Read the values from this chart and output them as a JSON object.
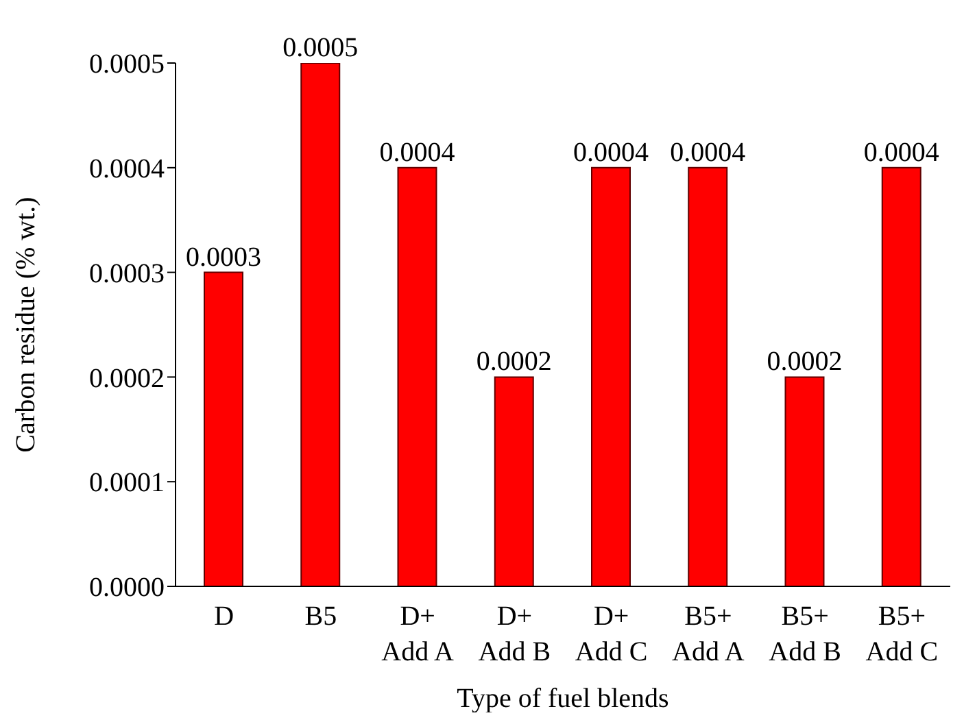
{
  "chart_data": {
    "type": "bar",
    "xlabel": "Type of fuel blends",
    "ylabel": "Carbon residue (% wt.)",
    "categories": [
      "D",
      "B5",
      "D+ Add A",
      "D+ Add B",
      "D+ Add C",
      "B5+ Add A",
      "B5+ Add B",
      "B5+ Add C"
    ],
    "values": [
      0.0003,
      0.0005,
      0.0004,
      0.0002,
      0.0004,
      0.0004,
      0.0002,
      0.0004
    ],
    "color": "#ff0000",
    "data_labels": true,
    "ylim": [
      0,
      0.0005
    ],
    "yticks": [
      {
        "value": 0,
        "label": "0.0000"
      },
      {
        "value": 0.0001,
        "label": "0.0001"
      },
      {
        "value": 0.0002,
        "label": "0.0002"
      },
      {
        "value": 0.0003,
        "label": "0.0003"
      },
      {
        "value": 0.0004,
        "label": "0.0004"
      },
      {
        "value": 0.0005,
        "label": "0.0005"
      }
    ],
    "grid": false,
    "legend": false
  }
}
